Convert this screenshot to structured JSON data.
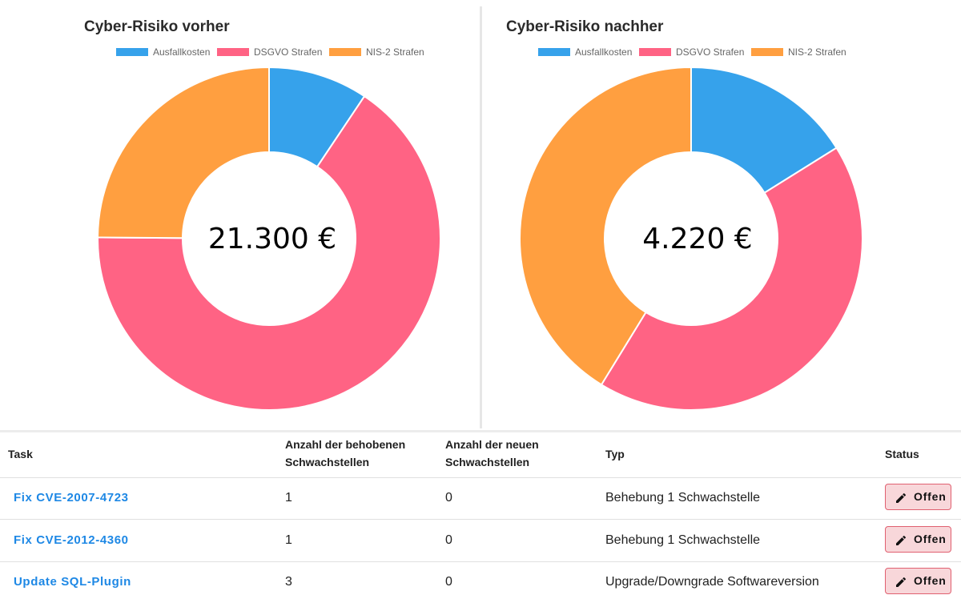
{
  "colors": {
    "ausfallkosten": "#36a2eb",
    "dsgvo": "#ff6384",
    "nis2": "#ff9f40",
    "link": "#1e88e5",
    "status_bg": "#f8d7da",
    "status_border": "#e06070"
  },
  "charts": {
    "before": {
      "title": "Cyber-Risiko vorher",
      "center_value": "21.300 €",
      "legend": [
        "Ausfallkosten",
        "DSGVO Strafen",
        "NIS-2 Strafen"
      ]
    },
    "after": {
      "title": "Cyber-Risiko nachher",
      "center_value": "4.220 €",
      "legend": [
        "Ausfallkosten",
        "DSGVO Strafen",
        "NIS-2 Strafen"
      ]
    }
  },
  "chart_data": [
    {
      "type": "pie",
      "title": "Cyber-Risiko vorher",
      "categories": [
        "Ausfallkosten",
        "DSGVO Strafen",
        "NIS-2 Strafen"
      ],
      "values": [
        2000,
        14000,
        5300
      ],
      "total_label": "21.300 €",
      "legend_position": "top"
    },
    {
      "type": "pie",
      "title": "Cyber-Risiko nachher",
      "categories": [
        "Ausfallkosten",
        "DSGVO Strafen",
        "NIS-2 Strafen"
      ],
      "values": [
        680,
        1800,
        1740
      ],
      "total_label": "4.220 €",
      "legend_position": "top"
    }
  ],
  "table": {
    "headers": {
      "task": "Task",
      "fixed_line1": "Anzahl der behobenen",
      "fixed_line2": "Schwachstellen",
      "new_line1": "Anzahl der neuen",
      "new_line2": "Schwachstellen",
      "type": "Typ",
      "status": "Status"
    },
    "rows": [
      {
        "task": "Fix CVE-2007-4723",
        "fixed": "1",
        "new": "0",
        "type": "Behebung 1 Schwachstelle",
        "status": "Offen"
      },
      {
        "task": "Fix CVE-2012-4360",
        "fixed": "1",
        "new": "0",
        "type": "Behebung 1 Schwachstelle",
        "status": "Offen"
      },
      {
        "task": "Update SQL-Plugin",
        "fixed": "3",
        "new": "0",
        "type": "Upgrade/Downgrade Softwareversion",
        "status": "Offen"
      }
    ]
  }
}
